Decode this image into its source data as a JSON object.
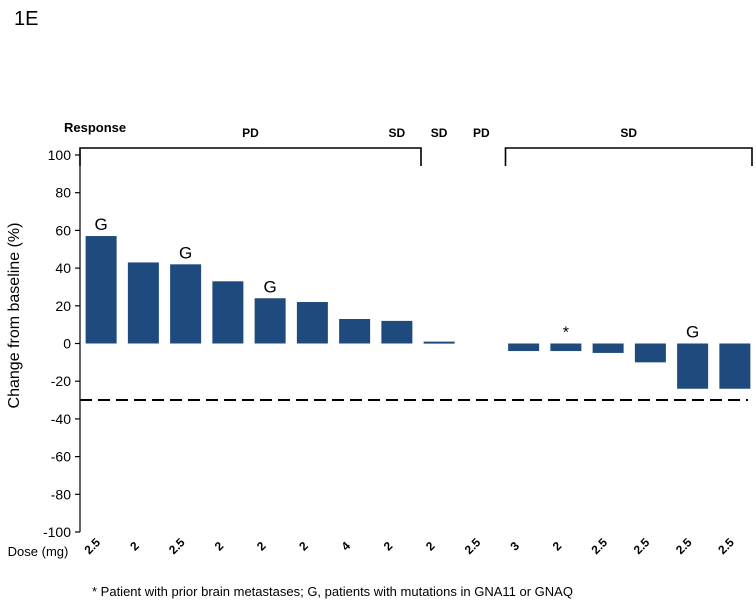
{
  "panel_label": "1E",
  "footnote": "* Patient with prior brain metastases; G, patients with mutations in GNA11 or GNAQ",
  "colors": {
    "bar": "#1F4A7D",
    "axis": "#000000",
    "threshold": "#000000"
  },
  "chart_data": {
    "type": "bar",
    "title": "",
    "xlabel": "",
    "ylabel": "Change from baseline (%)",
    "ylim": [
      -100,
      100
    ],
    "yticks": [
      100,
      80,
      60,
      40,
      20,
      0,
      -20,
      -40,
      -60,
      -80,
      -100
    ],
    "dose_label": "Dose (mg)",
    "categories": [
      "2.5",
      "2",
      "2.5",
      "2",
      "2",
      "2",
      "4",
      "2",
      "2",
      "2.5",
      "3",
      "2",
      "2.5",
      "2.5",
      "2.5",
      "2.5"
    ],
    "values": [
      57,
      43,
      42,
      33,
      24,
      22,
      13,
      12,
      1,
      0,
      -4,
      -4,
      -5,
      -10,
      -24,
      -24
    ],
    "bar_markers": [
      "G",
      "",
      "G",
      "",
      "G",
      "",
      "",
      "",
      "",
      "",
      "",
      "*",
      "",
      "",
      "G",
      ""
    ],
    "threshold": -30,
    "response_title": "Response",
    "response_groups": [
      {
        "label": "PD",
        "start": 0,
        "end": 7,
        "bracket": true
      },
      {
        "label": "SD",
        "start": 7,
        "end": 7,
        "bracket": false
      },
      {
        "label": "SD",
        "start": 8,
        "end": 8,
        "bracket": false
      },
      {
        "label": "PD",
        "start": 9,
        "end": 9,
        "bracket": false
      },
      {
        "label": "SD",
        "start": 10,
        "end": 15,
        "bracket": true
      }
    ]
  }
}
